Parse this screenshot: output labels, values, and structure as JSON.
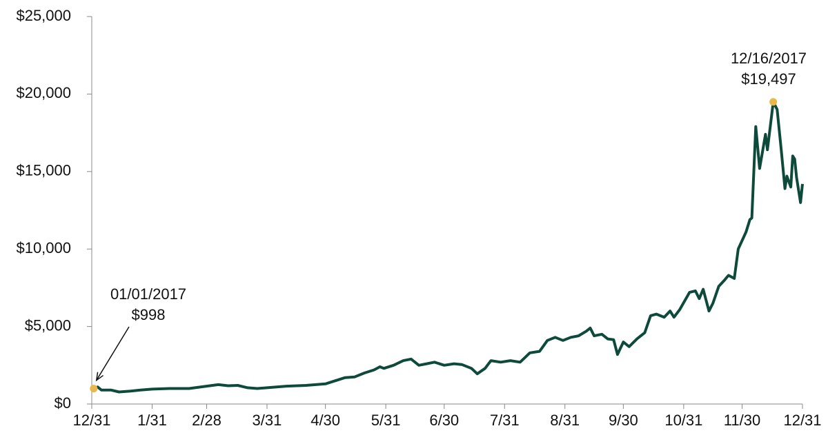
{
  "chart_data": {
    "type": "line",
    "x": [
      1,
      3,
      5,
      10,
      14,
      20,
      25,
      31,
      40,
      50,
      59,
      65,
      70,
      75,
      80,
      85,
      90,
      95,
      100,
      110,
      120,
      130,
      135,
      140,
      145,
      148,
      150,
      155,
      160,
      164,
      168,
      172,
      176,
      181,
      186,
      190,
      195,
      198,
      202,
      205,
      210,
      215,
      220,
      225,
      230,
      234,
      238,
      242,
      246,
      250,
      254,
      256,
      258,
      262,
      265,
      268,
      270,
      273,
      276,
      280,
      284,
      287,
      290,
      294,
      297,
      299,
      302,
      307,
      310,
      312,
      314,
      317,
      319,
      322,
      325,
      327,
      330,
      332,
      336,
      338,
      339,
      341,
      343,
      346,
      347,
      350,
      352,
      354,
      356,
      357,
      359,
      360,
      361,
      362,
      364,
      365
    ],
    "series": [
      {
        "color": "#0e4a3b",
        "values": [
          998,
          1100,
          900,
          900,
          780,
          830,
          900,
          960,
          1000,
          1000,
          1150,
          1250,
          1180,
          1200,
          1050,
          1000,
          1050,
          1100,
          1150,
          1200,
          1300,
          1700,
          1750,
          2000,
          2200,
          2400,
          2300,
          2500,
          2800,
          2900,
          2500,
          2600,
          2700,
          2500,
          2600,
          2550,
          2300,
          1950,
          2300,
          2800,
          2700,
          2800,
          2700,
          3300,
          3400,
          4100,
          4300,
          4100,
          4300,
          4400,
          4700,
          4900,
          4400,
          4500,
          4200,
          4150,
          3200,
          4000,
          3700,
          4200,
          4600,
          5700,
          5800,
          5600,
          6000,
          5600,
          6100,
          7200,
          7300,
          6800,
          7400,
          6000,
          6500,
          7600,
          8000,
          8300,
          8100,
          10000,
          11100,
          11900,
          12000,
          17900,
          15200,
          17400,
          16400,
          19497,
          19000,
          16500,
          13900,
          14700,
          14000,
          16000,
          15800,
          14600,
          13000,
          14200
        ]
      }
    ],
    "xlim": [
      0,
      365
    ],
    "xticks": [
      {
        "value": 0,
        "label": "12/31"
      },
      {
        "value": 31,
        "label": "1/31"
      },
      {
        "value": 59,
        "label": "2/28"
      },
      {
        "value": 90,
        "label": "3/31"
      },
      {
        "value": 120,
        "label": "4/30"
      },
      {
        "value": 151,
        "label": "5/31"
      },
      {
        "value": 181,
        "label": "6/30"
      },
      {
        "value": 212,
        "label": "7/31"
      },
      {
        "value": 243,
        "label": "8/31"
      },
      {
        "value": 273,
        "label": "9/30"
      },
      {
        "value": 304,
        "label": "10/31"
      },
      {
        "value": 334,
        "label": "11/30"
      },
      {
        "value": 365,
        "label": "12/31"
      }
    ],
    "ylim": [
      0,
      25000
    ],
    "yticks": [
      {
        "value": 0,
        "label": "$0"
      },
      {
        "value": 5000,
        "label": "$5,000"
      },
      {
        "value": 10000,
        "label": "$10,000"
      },
      {
        "value": 15000,
        "label": "$15,000"
      },
      {
        "value": 20000,
        "label": "$20,000"
      },
      {
        "value": 25000,
        "label": "$25,000"
      }
    ],
    "marker_color": "#e8b84a",
    "annotations": [
      {
        "x": 1,
        "y": 998,
        "date": "01/01/2017",
        "label": "$998"
      },
      {
        "x": 350,
        "y": 19497,
        "date": "12/16/2017",
        "label": "$19,497"
      }
    ]
  }
}
